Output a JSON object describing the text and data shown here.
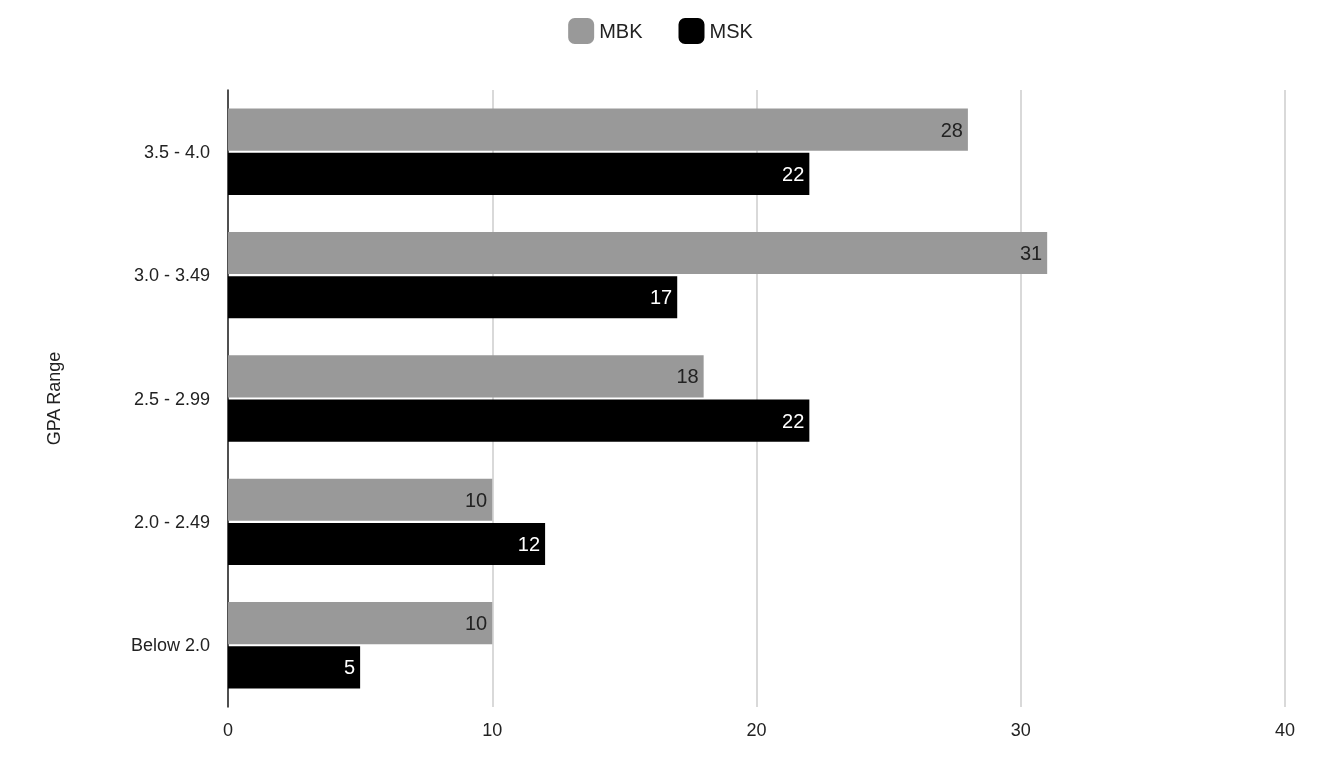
{
  "chart_data": {
    "type": "bar",
    "orientation": "horizontal",
    "ylabel": "GPA Range",
    "categories": [
      "3.5 - 4.0",
      "3.0 - 3.49",
      "2.5 - 2.99",
      "2.0 - 2.49",
      "Below 2.0"
    ],
    "series": [
      {
        "name": "MBK",
        "color": "#999999",
        "values": [
          28,
          31,
          18,
          10,
          10
        ]
      },
      {
        "name": "MSK",
        "color": "#000000",
        "values": [
          22,
          17,
          22,
          12,
          5
        ]
      }
    ],
    "xlim": [
      0,
      40
    ],
    "xticks": [
      0,
      10,
      20,
      30,
      40
    ],
    "grid": "x",
    "legend": "top",
    "data_labels": true
  }
}
